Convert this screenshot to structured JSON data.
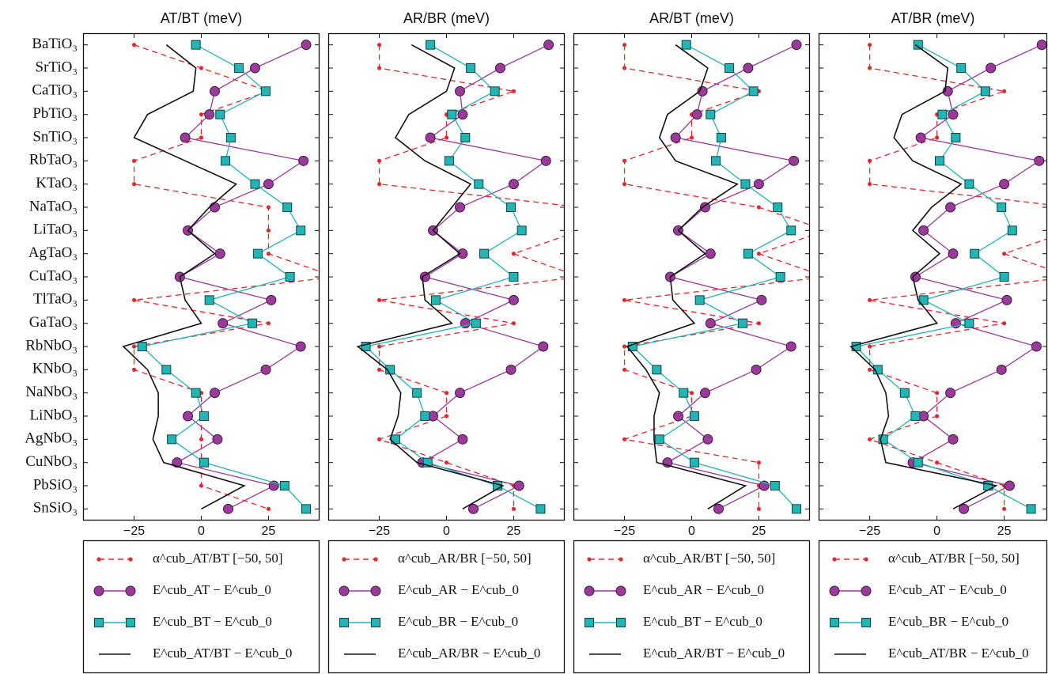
{
  "chart_data": [
    {
      "type": "line",
      "title": "AT/BT (meV)",
      "categories": [
        "BaTiO₃",
        "SrTiO₃",
        "CaTiO₃",
        "PbTiO₃",
        "SnTiO₃",
        "RbTaO₃",
        "KTaO₃",
        "NaTaO₃",
        "LiTaO₃",
        "AgTaO₃",
        "CuTaO₃",
        "TlTaO₃",
        "GaTaO₃",
        "RbNbO₃",
        "KNbO₃",
        "NaNbO₃",
        "LiNbO₃",
        "AgNbO₃",
        "CuNbO₃",
        "PbSiO₃",
        "SnSiO₃"
      ],
      "xlim": [
        -44,
        44
      ],
      "xticks": [
        {
          "value": -25,
          "label": "−25"
        },
        0,
        25
      ],
      "series": [
        {
          "name": "α^cub_AT/BT [−50, 50]",
          "color": "#e8262b",
          "linestyle": "dashed",
          "marker": "dot",
          "values": [
            -25,
            0,
            25,
            0,
            0,
            -25,
            -25,
            25,
            25,
            25,
            50,
            -25,
            25,
            -25,
            -25,
            0,
            0,
            0,
            0,
            0,
            25
          ]
        },
        {
          "name": "E^cub_AT − E^cub_0",
          "color": "#9b3a9b",
          "linestyle": "solid",
          "marker": "circle",
          "values": [
            39,
            20,
            5,
            3,
            -6,
            38,
            25,
            5,
            -5,
            7,
            -8,
            26,
            8,
            37,
            24,
            5,
            -5,
            6,
            -9,
            27,
            10
          ]
        },
        {
          "name": "E^cub_BT − E^cub_0",
          "color": "#22b5b5",
          "linestyle": "solid",
          "marker": "square",
          "values": [
            -2,
            14,
            24,
            7,
            11,
            9,
            20,
            32,
            37,
            21,
            33,
            3,
            19,
            -22,
            -13,
            -2,
            1,
            -11,
            1,
            31,
            39
          ]
        },
        {
          "name": "E^cub_AT/BT − E^cub_0",
          "color": "#111111",
          "linestyle": "solid",
          "marker": "none",
          "values": [
            -13,
            -2,
            -3,
            -20,
            -25,
            -6,
            13,
            3,
            -5,
            5,
            -8,
            -6,
            0,
            -29,
            -20,
            -16,
            -16,
            -18,
            -14,
            16,
            0
          ]
        }
      ]
    },
    {
      "type": "line",
      "title": "AR/BR (meV)",
      "xlim": [
        -44,
        44
      ],
      "xticks": [
        {
          "value": -25,
          "label": "−25"
        },
        0,
        25
      ],
      "series": [
        {
          "name": "α^cub_AR/BR [−50, 50]",
          "color": "#e8262b",
          "linestyle": "dashed",
          "marker": "dot",
          "values": [
            -25,
            -25,
            25,
            0,
            0,
            -25,
            -25,
            50,
            50,
            25,
            50,
            -25,
            25,
            -25,
            -25,
            0,
            0,
            -25,
            0,
            25,
            25
          ]
        },
        {
          "name": "E^cub_AR − E^cub_0",
          "color": "#9b3a9b",
          "linestyle": "solid",
          "marker": "circle",
          "values": [
            38,
            20,
            5,
            6,
            -6,
            37,
            25,
            5,
            -5,
            6,
            -8,
            25,
            7,
            36,
            24,
            5,
            -5,
            6,
            -9,
            27,
            10
          ]
        },
        {
          "name": "E^cub_BR − E^cub_0",
          "color": "#22b5b5",
          "linestyle": "solid",
          "marker": "square",
          "values": [
            -6,
            9,
            18,
            2,
            7,
            1,
            12,
            24,
            28,
            14,
            25,
            -4,
            11,
            -30,
            -21,
            -11,
            -8,
            -19,
            -7,
            19,
            35
          ]
        },
        {
          "name": "E^cub_AR/BR − E^cub_0",
          "color": "#111111",
          "linestyle": "solid",
          "marker": "none",
          "values": [
            -13,
            3,
            0,
            -14,
            -19,
            -8,
            9,
            2,
            -5,
            5,
            -9,
            -8,
            2,
            -33,
            -22,
            -17,
            -18,
            -21,
            -11,
            21,
            6
          ]
        }
      ]
    },
    {
      "type": "line",
      "title": "AR/BT (meV)",
      "xlim": [
        -44,
        44
      ],
      "xticks": [
        {
          "value": -25,
          "label": "−25"
        },
        0,
        25
      ],
      "series": [
        {
          "name": "α^cub_AR/BT [−50, 50]",
          "color": "#e8262b",
          "linestyle": "dashed",
          "marker": "dot",
          "values": [
            -25,
            -25,
            25,
            0,
            0,
            -25,
            -25,
            25,
            50,
            25,
            50,
            -25,
            25,
            -25,
            -25,
            0,
            0,
            -25,
            25,
            25,
            25
          ]
        },
        {
          "name": "E^cub_AR − E^cub_0",
          "color": "#9b3a9b",
          "linestyle": "solid",
          "marker": "circle",
          "values": [
            39,
            21,
            4,
            2,
            -6,
            38,
            25,
            5,
            -5,
            7,
            -8,
            26,
            7,
            37,
            24,
            5,
            -5,
            6,
            -9,
            27,
            10
          ]
        },
        {
          "name": "E^cub_BT − E^cub_0",
          "color": "#22b5b5",
          "linestyle": "solid",
          "marker": "square",
          "values": [
            -2,
            14,
            23,
            7,
            11,
            9,
            20,
            32,
            37,
            21,
            33,
            3,
            19,
            -22,
            -13,
            -3,
            1,
            -12,
            1,
            31,
            39
          ]
        },
        {
          "name": "E^cub_AR/BT − E^cub_0",
          "color": "#111111",
          "linestyle": "solid",
          "marker": "none",
          "values": [
            -6,
            6,
            3,
            -9,
            -12,
            -6,
            17,
            4,
            -5,
            5,
            -8,
            -7,
            1,
            -24,
            -17,
            -12,
            -14,
            -14,
            -13,
            20,
            6
          ]
        }
      ]
    },
    {
      "type": "line",
      "title": "AT/BR (meV)",
      "xlim": [
        -44,
        41
      ],
      "xticks": [
        {
          "value": -25,
          "label": "−25"
        },
        0,
        25
      ],
      "series": [
        {
          "name": "α^cub_AT/BR [−50, 50]",
          "color": "#e8262b",
          "linestyle": "dashed",
          "marker": "dot",
          "values": [
            -25,
            -25,
            25,
            0,
            0,
            -25,
            -25,
            50,
            50,
            25,
            50,
            -25,
            25,
            -25,
            -25,
            0,
            0,
            -25,
            0,
            25,
            25
          ]
        },
        {
          "name": "E^cub_AT − E^cub_0",
          "color": "#9b3a9b",
          "linestyle": "solid",
          "marker": "circle",
          "values": [
            39,
            20,
            4,
            6,
            -6,
            38,
            25,
            5,
            -5,
            6,
            -8,
            26,
            7,
            37,
            24,
            5,
            -5,
            6,
            -9,
            27,
            10
          ]
        },
        {
          "name": "E^cub_BR − E^cub_0",
          "color": "#22b5b5",
          "linestyle": "solid",
          "marker": "square",
          "values": [
            -7,
            9,
            18,
            2,
            7,
            1,
            12,
            24,
            28,
            14,
            25,
            -5,
            12,
            -30,
            -22,
            -12,
            -8,
            -20,
            -7,
            19,
            35
          ]
        },
        {
          "name": "E^cub_AT/BR − E^cub_0",
          "color": "#111111",
          "linestyle": "solid",
          "marker": "none",
          "values": [
            -8,
            4,
            3,
            -13,
            -16,
            -9,
            9,
            -2,
            -9,
            1,
            -9,
            -7,
            0,
            -32,
            -23,
            -19,
            -18,
            -21,
            -19,
            22,
            6
          ]
        }
      ]
    }
  ]
}
